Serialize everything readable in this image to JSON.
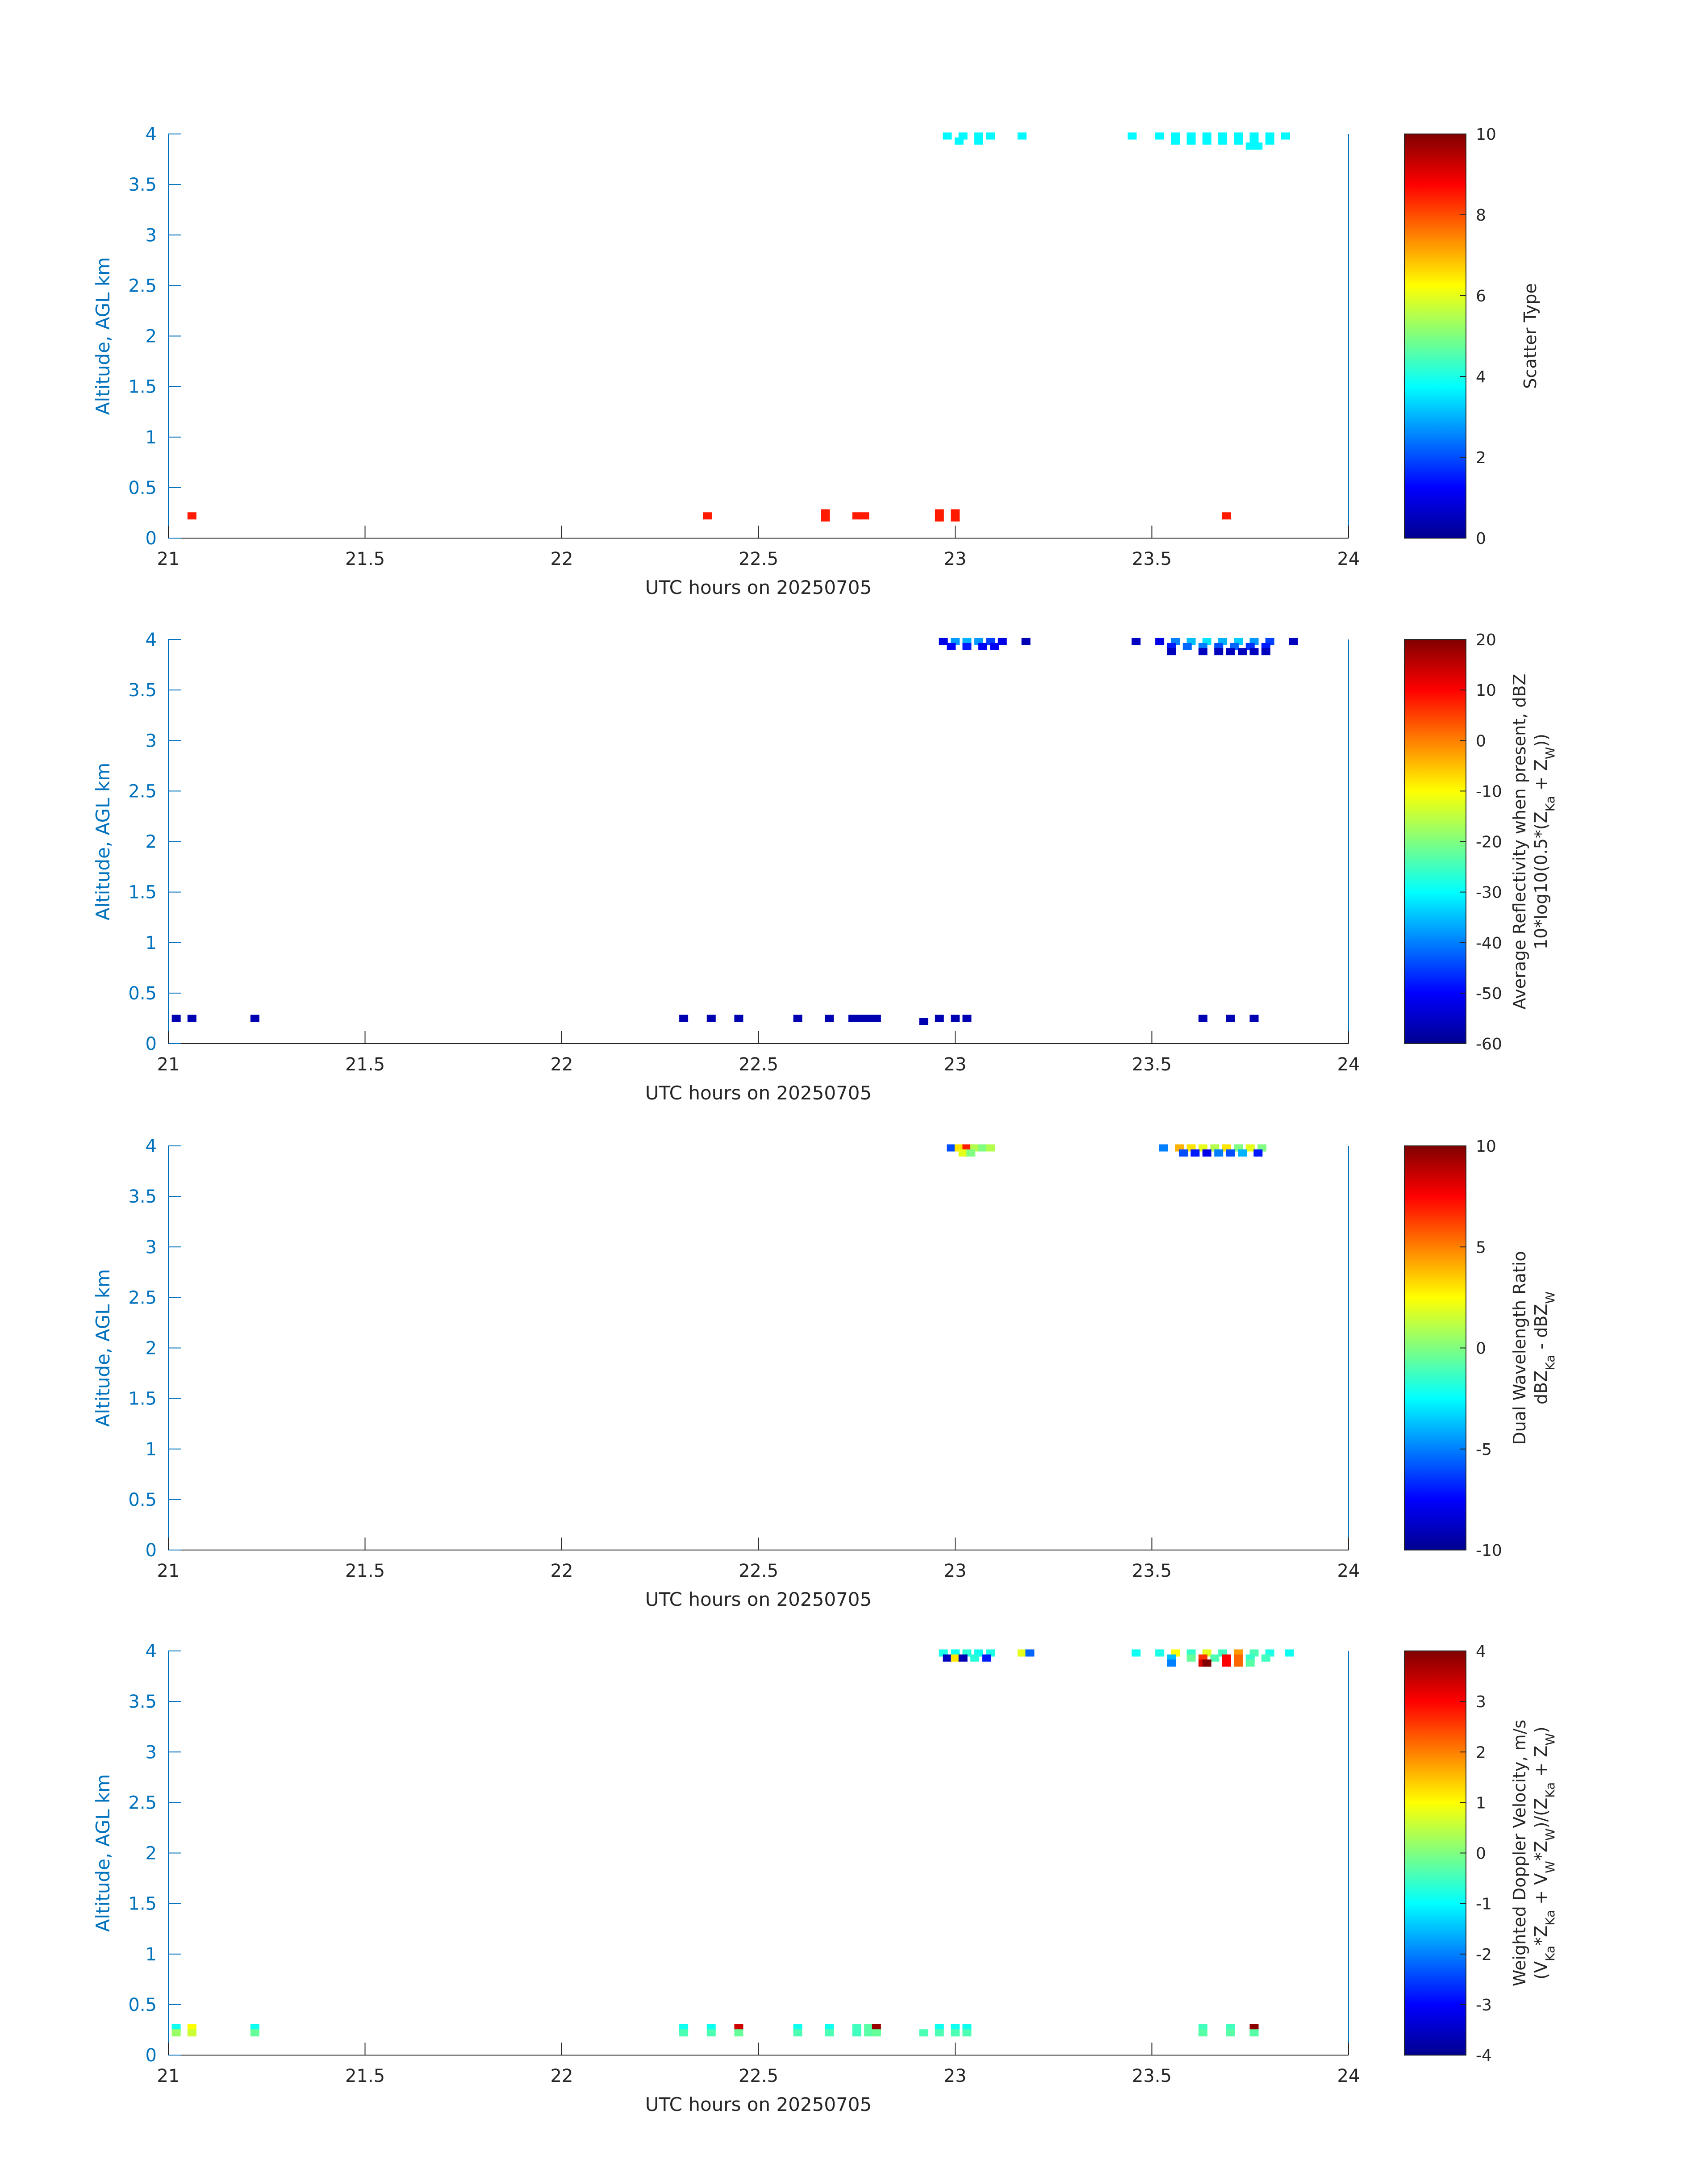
{
  "figure": {
    "xlabel": "UTC hours on 20250705",
    "ylabel": "Altitude, AGL km",
    "colors": {
      "axis_left": "#0072BD",
      "axis_bottom": "#262626",
      "frame": "#0072BD"
    }
  },
  "chart_data": [
    {
      "type": "heatmap",
      "title": "",
      "xlabel": "UTC hours on 20250705",
      "ylabel": "Altitude, AGL km",
      "xlim": [
        21,
        24
      ],
      "ylim": [
        0,
        4
      ],
      "xticks": [
        "21",
        "21.5",
        "22",
        "22.5",
        "23",
        "23.5",
        "24"
      ],
      "yticks": [
        "0",
        "0.5",
        "1",
        "1.5",
        "2",
        "2.5",
        "3",
        "3.5",
        "4"
      ],
      "colormap": "jet",
      "colorbar": {
        "label_lines": [
          "Scatter Type"
        ],
        "clim": [
          0,
          10
        ],
        "ticks": [
          "0",
          "2",
          "4",
          "6",
          "8",
          "10"
        ]
      },
      "cells": [
        [
          21.06,
          0.22,
          8.5
        ],
        [
          22.37,
          0.22,
          8.5
        ],
        [
          22.67,
          0.25,
          8.5
        ],
        [
          22.67,
          0.2,
          8.5
        ],
        [
          22.75,
          0.22,
          8.5
        ],
        [
          22.77,
          0.22,
          8.5
        ],
        [
          22.96,
          0.25,
          8.5
        ],
        [
          22.96,
          0.2,
          8.5
        ],
        [
          23.0,
          0.25,
          8.5
        ],
        [
          23.0,
          0.2,
          8.5
        ],
        [
          23.69,
          0.22,
          8.5
        ],
        [
          22.98,
          3.98,
          3.7
        ],
        [
          23.02,
          3.98,
          3.7
        ],
        [
          23.06,
          3.98,
          3.7
        ],
        [
          23.09,
          3.98,
          3.7
        ],
        [
          23.01,
          3.93,
          3.7
        ],
        [
          23.06,
          3.93,
          3.7
        ],
        [
          23.17,
          3.98,
          3.7
        ],
        [
          23.45,
          3.98,
          3.7
        ],
        [
          23.52,
          3.98,
          3.7
        ],
        [
          23.56,
          3.98,
          3.7
        ],
        [
          23.6,
          3.98,
          3.7
        ],
        [
          23.64,
          3.98,
          3.7
        ],
        [
          23.68,
          3.98,
          3.7
        ],
        [
          23.72,
          3.98,
          3.7
        ],
        [
          23.76,
          3.98,
          3.7
        ],
        [
          23.8,
          3.98,
          3.7
        ],
        [
          23.84,
          3.98,
          3.7
        ],
        [
          23.56,
          3.93,
          3.7
        ],
        [
          23.6,
          3.93,
          3.7
        ],
        [
          23.64,
          3.93,
          3.7
        ],
        [
          23.68,
          3.93,
          3.7
        ],
        [
          23.72,
          3.93,
          3.7
        ],
        [
          23.76,
          3.93,
          3.7
        ],
        [
          23.8,
          3.93,
          3.7
        ],
        [
          23.75,
          3.88,
          3.7
        ],
        [
          23.77,
          3.88,
          3.7
        ]
      ]
    },
    {
      "type": "heatmap",
      "title": "",
      "xlabel": "UTC hours on 20250705",
      "ylabel": "Altitude, AGL km",
      "xlim": [
        21,
        24
      ],
      "ylim": [
        0,
        4
      ],
      "xticks": [
        "21",
        "21.5",
        "22",
        "22.5",
        "23",
        "23.5",
        "24"
      ],
      "yticks": [
        "0",
        "0.5",
        "1",
        "1.5",
        "2",
        "2.5",
        "3",
        "3.5",
        "4"
      ],
      "colormap": "jet",
      "colorbar": {
        "label_lines": [
          "Average Reflectivity when present, dBZ",
          "10*log10(0.5*(Z{Ka} + Z{W}))"
        ],
        "clim": [
          -60,
          20
        ],
        "ticks": [
          "-60",
          "-50",
          "-40",
          "-30",
          "-20",
          "-10",
          "0",
          "10",
          "20"
        ]
      },
      "cells": [
        [
          21.02,
          0.25,
          -56
        ],
        [
          21.06,
          0.25,
          -56
        ],
        [
          21.22,
          0.25,
          -56
        ],
        [
          22.31,
          0.25,
          -56
        ],
        [
          22.38,
          0.25,
          -56
        ],
        [
          22.45,
          0.25,
          -56
        ],
        [
          22.6,
          0.25,
          -56
        ],
        [
          22.68,
          0.25,
          -56
        ],
        [
          22.74,
          0.25,
          -56
        ],
        [
          22.76,
          0.25,
          -56
        ],
        [
          22.78,
          0.25,
          -56
        ],
        [
          22.8,
          0.25,
          -56
        ],
        [
          22.92,
          0.22,
          -56
        ],
        [
          22.96,
          0.25,
          -56
        ],
        [
          23.0,
          0.25,
          -56
        ],
        [
          23.03,
          0.25,
          -56
        ],
        [
          23.63,
          0.25,
          -56
        ],
        [
          23.7,
          0.25,
          -56
        ],
        [
          23.76,
          0.25,
          -56
        ],
        [
          22.97,
          3.98,
          -52
        ],
        [
          23.0,
          3.98,
          -38
        ],
        [
          23.03,
          3.98,
          -36
        ],
        [
          23.06,
          3.98,
          -38
        ],
        [
          23.09,
          3.98,
          -45
        ],
        [
          23.12,
          3.98,
          -52
        ],
        [
          22.99,
          3.93,
          -50
        ],
        [
          23.03,
          3.93,
          -48
        ],
        [
          23.07,
          3.93,
          -50
        ],
        [
          23.1,
          3.93,
          -50
        ],
        [
          23.18,
          3.98,
          -56
        ],
        [
          23.46,
          3.98,
          -55
        ],
        [
          23.52,
          3.98,
          -52
        ],
        [
          23.56,
          3.98,
          -40
        ],
        [
          23.6,
          3.98,
          -35
        ],
        [
          23.64,
          3.98,
          -32
        ],
        [
          23.68,
          3.98,
          -36
        ],
        [
          23.72,
          3.98,
          -34
        ],
        [
          23.76,
          3.98,
          -38
        ],
        [
          23.8,
          3.98,
          -45
        ],
        [
          23.86,
          3.98,
          -55
        ],
        [
          23.55,
          3.93,
          -48
        ],
        [
          23.59,
          3.93,
          -42
        ],
        [
          23.63,
          3.93,
          -40
        ],
        [
          23.67,
          3.93,
          -44
        ],
        [
          23.71,
          3.93,
          -42
        ],
        [
          23.75,
          3.93,
          -46
        ],
        [
          23.79,
          3.93,
          -48
        ],
        [
          23.55,
          3.88,
          -55
        ],
        [
          23.63,
          3.88,
          -55
        ],
        [
          23.67,
          3.88,
          -55
        ],
        [
          23.7,
          3.88,
          -55
        ],
        [
          23.73,
          3.88,
          -55
        ],
        [
          23.76,
          3.88,
          -55
        ],
        [
          23.79,
          3.88,
          -55
        ]
      ]
    },
    {
      "type": "heatmap",
      "title": "",
      "xlabel": "UTC hours on 20250705",
      "ylabel": "Altitude, AGL km",
      "xlim": [
        21,
        24
      ],
      "ylim": [
        0,
        4
      ],
      "xticks": [
        "21",
        "21.5",
        "22",
        "22.5",
        "23",
        "23.5",
        "24"
      ],
      "yticks": [
        "0",
        "0.5",
        "1",
        "1.5",
        "2",
        "2.5",
        "3",
        "3.5",
        "4"
      ],
      "colormap": "jet",
      "colorbar": {
        "label_lines": [
          "Dual Wavelength Ratio",
          "dBZ{Ka} - dBZ{W}"
        ],
        "clim": [
          -10,
          10
        ],
        "ticks": [
          "-10",
          "-5",
          "0",
          "5",
          "10"
        ]
      },
      "cells": [
        [
          22.99,
          3.98,
          -6
        ],
        [
          23.01,
          3.98,
          3
        ],
        [
          23.03,
          3.98,
          7
        ],
        [
          23.05,
          3.98,
          1
        ],
        [
          23.07,
          3.98,
          0
        ],
        [
          23.09,
          3.98,
          1
        ],
        [
          23.02,
          3.93,
          2
        ],
        [
          23.04,
          3.93,
          0
        ],
        [
          23.53,
          3.98,
          -5
        ],
        [
          23.57,
          3.98,
          4
        ],
        [
          23.6,
          3.98,
          3
        ],
        [
          23.63,
          3.98,
          2
        ],
        [
          23.66,
          3.98,
          1
        ],
        [
          23.69,
          3.98,
          3
        ],
        [
          23.72,
          3.98,
          0
        ],
        [
          23.75,
          3.98,
          2
        ],
        [
          23.78,
          3.98,
          0
        ],
        [
          23.58,
          3.93,
          -6
        ],
        [
          23.61,
          3.93,
          -7
        ],
        [
          23.64,
          3.93,
          -8
        ],
        [
          23.67,
          3.93,
          -5
        ],
        [
          23.7,
          3.93,
          -6
        ],
        [
          23.73,
          3.93,
          -4
        ],
        [
          23.77,
          3.93,
          -7
        ]
      ]
    },
    {
      "type": "heatmap",
      "title": "",
      "xlabel": "UTC hours on 20250705",
      "ylabel": "Altitude, AGL km",
      "xlim": [
        21,
        24
      ],
      "ylim": [
        0,
        4
      ],
      "xticks": [
        "21",
        "21.5",
        "22",
        "22.5",
        "23",
        "23.5",
        "24"
      ],
      "yticks": [
        "0",
        "0.5",
        "1",
        "1.5",
        "2",
        "2.5",
        "3",
        "3.5",
        "4"
      ],
      "colormap": "jet",
      "colorbar": {
        "label_lines": [
          "Weighted Doppler Velocity, m/s",
          "(V{Ka}*Z{Ka} + V{W}*Z{W})/(Z{Ka} + Z{W})"
        ],
        "clim": [
          -4,
          4
        ],
        "ticks": [
          "-4",
          "-3",
          "-2",
          "-1",
          "0",
          "1",
          "2",
          "3",
          "4"
        ]
      },
      "cells": [
        [
          21.02,
          0.27,
          -0.9
        ],
        [
          21.02,
          0.22,
          0.2
        ],
        [
          21.06,
          0.27,
          1.0
        ],
        [
          21.06,
          0.22,
          0.6
        ],
        [
          21.22,
          0.27,
          -0.9
        ],
        [
          21.22,
          0.22,
          -0.2
        ],
        [
          22.31,
          0.27,
          -0.9
        ],
        [
          22.31,
          0.22,
          -0.4
        ],
        [
          22.38,
          0.27,
          -0.9
        ],
        [
          22.38,
          0.22,
          -0.4
        ],
        [
          22.45,
          0.27,
          3.4
        ],
        [
          22.45,
          0.22,
          -0.2
        ],
        [
          22.6,
          0.27,
          -0.9
        ],
        [
          22.6,
          0.22,
          -0.4
        ],
        [
          22.68,
          0.27,
          -0.9
        ],
        [
          22.68,
          0.22,
          -0.4
        ],
        [
          22.75,
          0.27,
          -0.5
        ],
        [
          22.78,
          0.27,
          -0.3
        ],
        [
          22.8,
          0.27,
          3.8
        ],
        [
          22.75,
          0.22,
          -0.5
        ],
        [
          22.78,
          0.22,
          -0.3
        ],
        [
          22.8,
          0.22,
          -0.2
        ],
        [
          22.92,
          0.22,
          -0.4
        ],
        [
          22.96,
          0.27,
          -0.9
        ],
        [
          22.96,
          0.22,
          -0.4
        ],
        [
          23.0,
          0.27,
          -0.9
        ],
        [
          23.0,
          0.22,
          -0.4
        ],
        [
          23.03,
          0.27,
          -0.9
        ],
        [
          23.03,
          0.22,
          -0.4
        ],
        [
          23.63,
          0.27,
          -0.5
        ],
        [
          23.63,
          0.22,
          -0.3
        ],
        [
          23.7,
          0.27,
          -0.5
        ],
        [
          23.7,
          0.22,
          -0.3
        ],
        [
          23.76,
          0.27,
          3.9
        ],
        [
          23.76,
          0.22,
          -0.3
        ],
        [
          22.97,
          3.98,
          -0.8
        ],
        [
          23.0,
          3.98,
          -0.9
        ],
        [
          23.03,
          3.98,
          -0.7
        ],
        [
          23.06,
          3.98,
          -0.9
        ],
        [
          23.09,
          3.98,
          -0.8
        ],
        [
          22.98,
          3.93,
          -3.5
        ],
        [
          23.0,
          3.93,
          1.2
        ],
        [
          23.02,
          3.93,
          -3.6
        ],
        [
          23.05,
          3.93,
          -0.7
        ],
        [
          23.08,
          3.93,
          -2.8
        ],
        [
          23.17,
          3.98,
          0.8
        ],
        [
          23.19,
          3.98,
          -2.2
        ],
        [
          23.46,
          3.98,
          -0.9
        ],
        [
          23.52,
          3.98,
          -0.8
        ],
        [
          23.56,
          3.98,
          1.0
        ],
        [
          23.6,
          3.98,
          -0.6
        ],
        [
          23.64,
          3.98,
          0.8
        ],
        [
          23.68,
          3.98,
          -0.5
        ],
        [
          23.72,
          3.98,
          1.8
        ],
        [
          23.76,
          3.98,
          -0.4
        ],
        [
          23.8,
          3.98,
          -0.8
        ],
        [
          23.85,
          3.98,
          -0.9
        ],
        [
          23.55,
          3.93,
          -1.5
        ],
        [
          23.6,
          3.93,
          -0.2
        ],
        [
          23.63,
          3.93,
          2.6
        ],
        [
          23.66,
          3.93,
          -0.4
        ],
        [
          23.69,
          3.93,
          3.0
        ],
        [
          23.72,
          3.93,
          2.2
        ],
        [
          23.75,
          3.93,
          -0.6
        ],
        [
          23.79,
          3.93,
          -0.5
        ],
        [
          23.55,
          3.88,
          -2.0
        ],
        [
          23.63,
          3.88,
          3.3
        ],
        [
          23.64,
          3.88,
          4.0
        ],
        [
          23.69,
          3.88,
          3.0
        ],
        [
          23.72,
          3.88,
          2.2
        ],
        [
          23.75,
          3.88,
          -0.3
        ]
      ]
    }
  ]
}
